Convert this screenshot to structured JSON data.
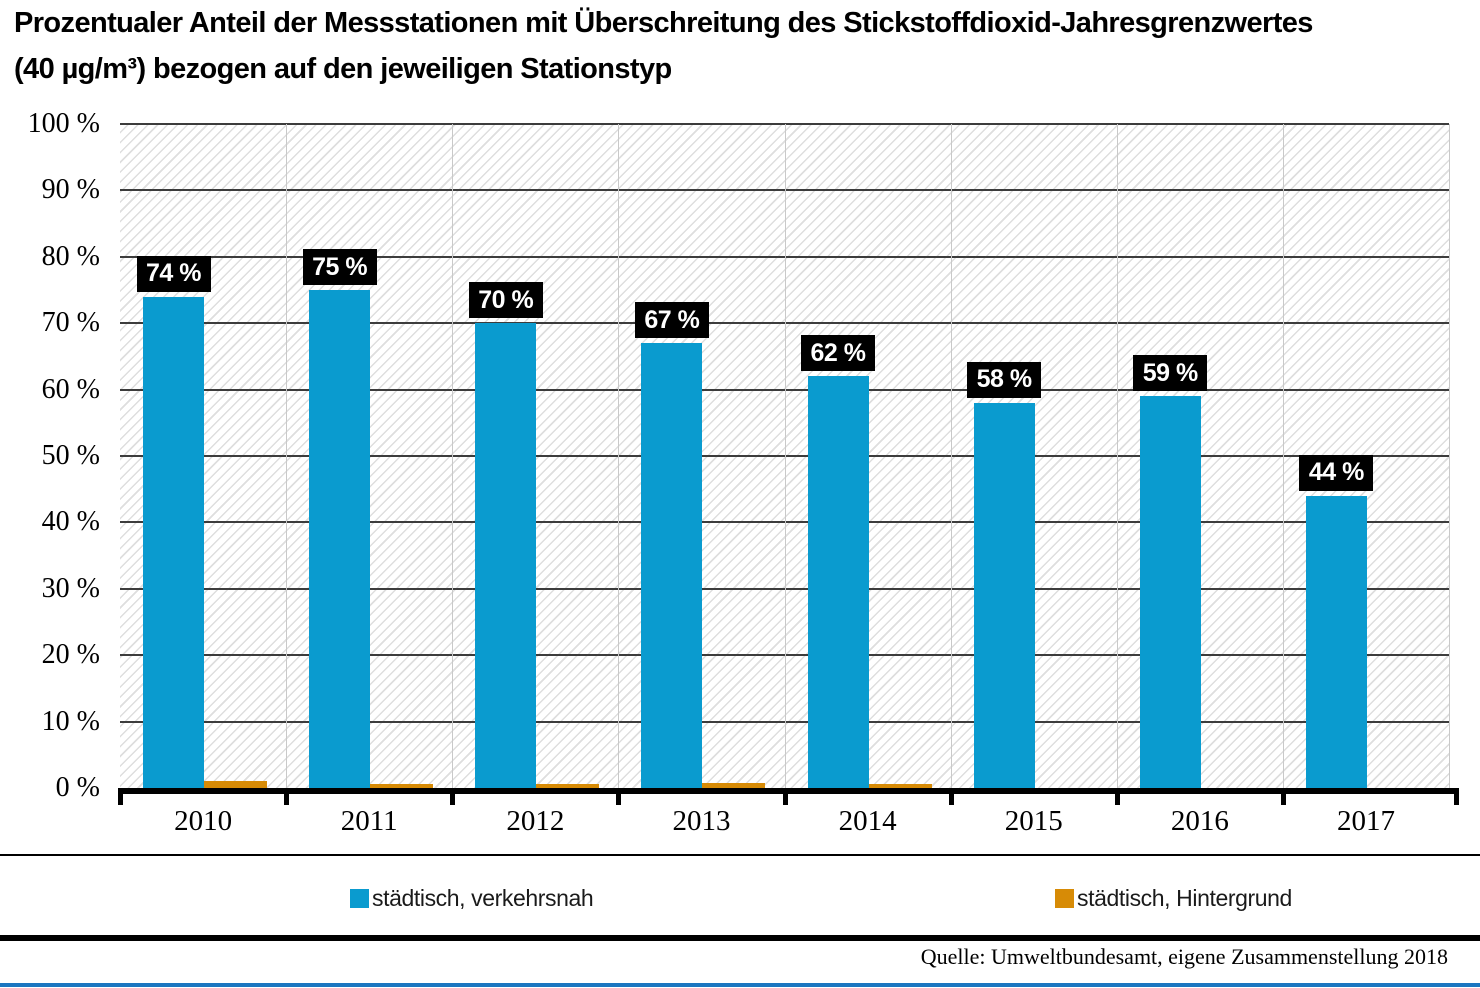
{
  "title": {
    "line1": "Prozentualer Anteil der Messstationen mit Überschreitung des Stickstoffdioxid-Jahresgrenzwertes",
    "line2": "(40 µg/m³) bezogen auf den jeweiligen Stationstyp",
    "full": "Prozentualer Anteil der Messstationen mit Überschreitung des Stickstoffdioxid-Jahresgrenzwertes (40 µg/m³) bezogen auf den jeweiligen Stationstyp"
  },
  "source": "Quelle: Umweltbundesamt, eigene Zusammenstellung 2018",
  "colors": {
    "series_blue": "#0a9bcf",
    "series_orange": "#d78b06",
    "bar_label_bg": "#000000",
    "bar_label_text": "#ffffff",
    "gridline": "#3c3c3c",
    "group_separator": "#c9c9c9",
    "hatch_line": "#dedede",
    "axis": "#000000",
    "bottom_accent": "#1b76c0"
  },
  "chart_data": {
    "type": "bar",
    "categories": [
      "2010",
      "2011",
      "2012",
      "2013",
      "2014",
      "2015",
      "2016",
      "2017"
    ],
    "series": [
      {
        "name": "städtisch, verkehrsnah",
        "color": "#0a9bcf",
        "values": [
          74,
          75,
          70,
          67,
          62,
          58,
          59,
          44
        ],
        "labels": [
          "74 %",
          "75 %",
          "70 %",
          "67 %",
          "62 %",
          "58 %",
          "59 %",
          "44 %"
        ]
      },
      {
        "name": "städtisch, Hintergrund",
        "color": "#d78b06",
        "values": [
          1.1,
          0.6,
          0.6,
          0.7,
          0.6,
          0,
          0,
          0
        ],
        "labels": [
          "",
          "",
          "",
          "",
          "",
          "",
          "",
          ""
        ]
      }
    ],
    "title": "Prozentualer Anteil der Messstationen mit Überschreitung des Stickstoffdioxid-Jahresgrenzwertes (40 µg/m³) bezogen auf den jeweiligen Stationstyp",
    "xlabel": "",
    "ylabel": "",
    "ylim": [
      0,
      100
    ],
    "yticks": [
      "0 %",
      "10 %",
      "20 %",
      "30 %",
      "40 %",
      "50 %",
      "60 %",
      "70 %",
      "80 %",
      "90 %",
      "100 %"
    ],
    "grid": true,
    "grid_style": "horizontal-every-10pct-plus-vertical-group-separators",
    "background": "diagonal-hatch",
    "legend_position": "bottom"
  },
  "legend": {
    "items": [
      {
        "label": "städtisch, verkehrsnah",
        "color": "#0a9bcf"
      },
      {
        "label": "städtisch, Hintergrund",
        "color": "#d78b06"
      }
    ]
  }
}
